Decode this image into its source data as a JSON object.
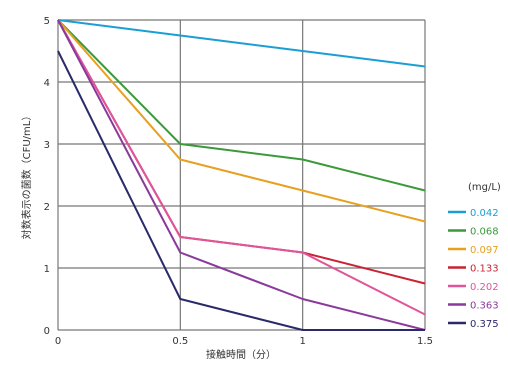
{
  "chart_data": {
    "type": "line",
    "title": "",
    "xlabel": "接触時間（分）",
    "ylabel": "対数表示の菌数（CFU/mL）",
    "xlim": [
      0,
      1.5
    ],
    "ylim": [
      0,
      5
    ],
    "xticks": [
      "0",
      "0.5",
      "1",
      "1.5"
    ],
    "yticks": [
      "0",
      "1",
      "2",
      "3",
      "4",
      "5"
    ],
    "grid": true,
    "legend_title": "(mg/L)",
    "legend_position": "right",
    "x": [
      0,
      0.5,
      1,
      1.5
    ],
    "series": [
      {
        "name": "0.042",
        "color": "#1a9fd4",
        "values": [
          5,
          4.75,
          4.5,
          4.25
        ]
      },
      {
        "name": "0.068",
        "color": "#3a9a3a",
        "values": [
          5,
          3.0,
          2.75,
          2.25
        ]
      },
      {
        "name": "0.097",
        "color": "#e8a020",
        "values": [
          5,
          2.75,
          2.25,
          1.75
        ]
      },
      {
        "name": "0.133",
        "color": "#cc2233",
        "values": [
          5,
          1.5,
          1.25,
          0.75
        ]
      },
      {
        "name": "0.202",
        "color": "#e0559a",
        "values": [
          5,
          1.5,
          1.25,
          0.25
        ]
      },
      {
        "name": "0.363",
        "color": "#8a3a9a",
        "values": [
          5,
          1.25,
          0.5,
          0
        ]
      },
      {
        "name": "0.375",
        "color": "#2a2a6a",
        "values": [
          4.5,
          0.5,
          0,
          0
        ]
      }
    ]
  }
}
